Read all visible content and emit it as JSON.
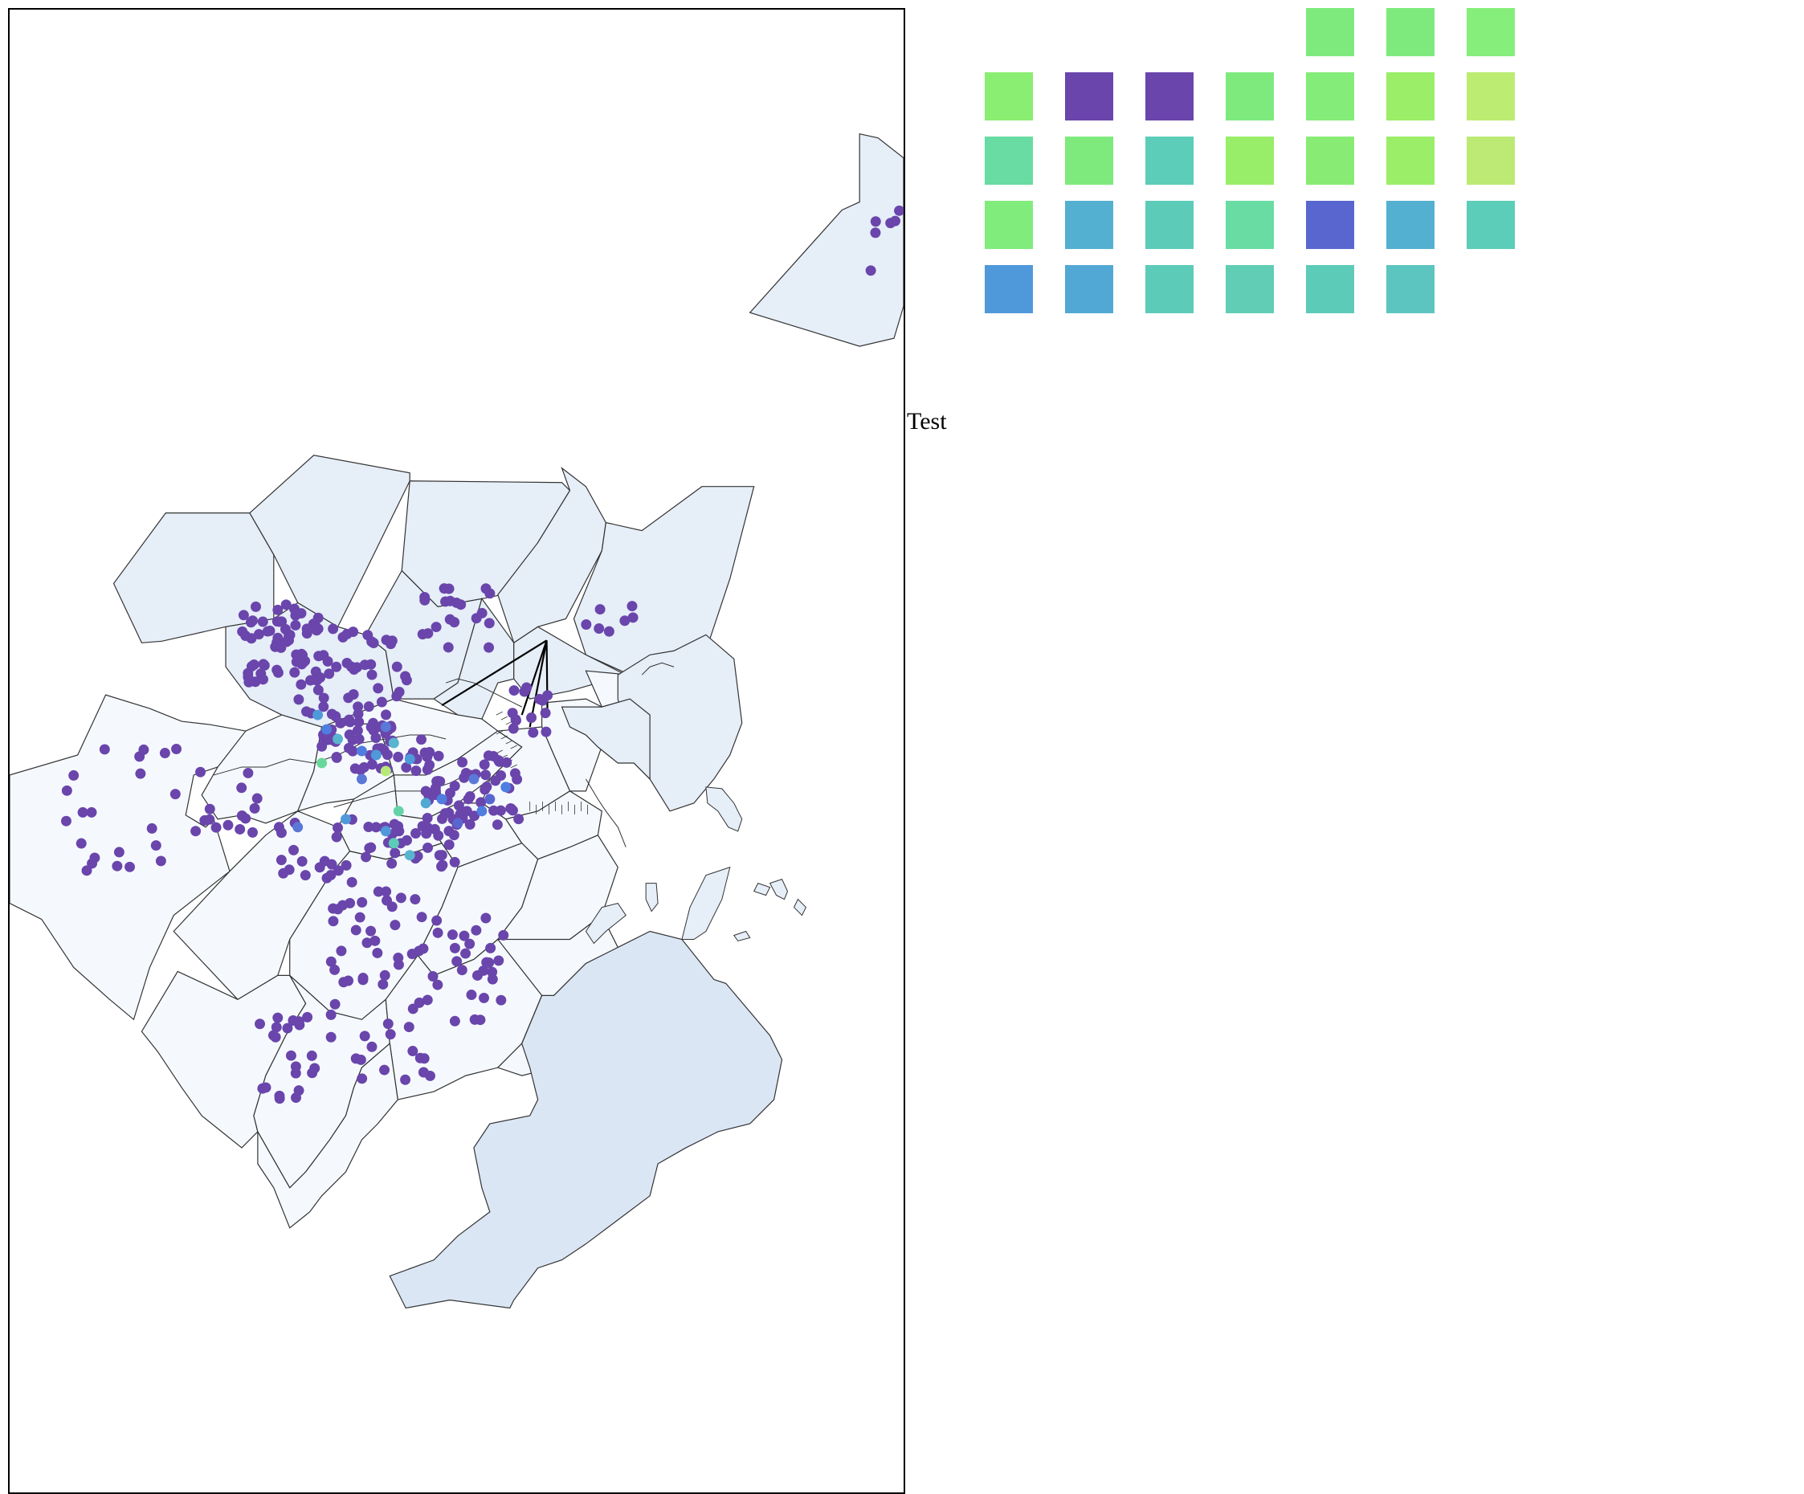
{
  "label": "Test",
  "colors": {
    "neighborhood_fill_light": "#f5f9fe",
    "neighborhood_fill_mid": "#e6eef8",
    "neighborhood_fill_dark": "#dae6f4",
    "boundary_stroke": "#333333",
    "frame_stroke": "#000000",
    "station_default": "#6a45ab",
    "route_line": "#000000"
  },
  "calendar": {
    "rows": [
      [
        null,
        null,
        null,
        null,
        "#7eea7e",
        "#7eea7e",
        "#86ee7a"
      ],
      [
        "#8aee72",
        "#6a45ab",
        "#6a45ab",
        "#7eea7e",
        "#84ec78",
        "#9aee68",
        "#bcec72"
      ],
      [
        "#68dca2",
        "#7eea7e",
        "#5ccdb8",
        "#98ee68",
        "#88ec74",
        "#9aee68",
        "#bcea74"
      ],
      [
        "#80ec7c",
        "#54b0d0",
        "#5ccbb8",
        "#68dca2",
        "#5966d0",
        "#54b0d0",
        "#5ccdb8"
      ],
      [
        "#4f99da",
        "#52a8d4",
        "#5ccbb8",
        "#60cdb4",
        "#5ccbb8",
        "#5cc5c0",
        null
      ]
    ]
  }
}
